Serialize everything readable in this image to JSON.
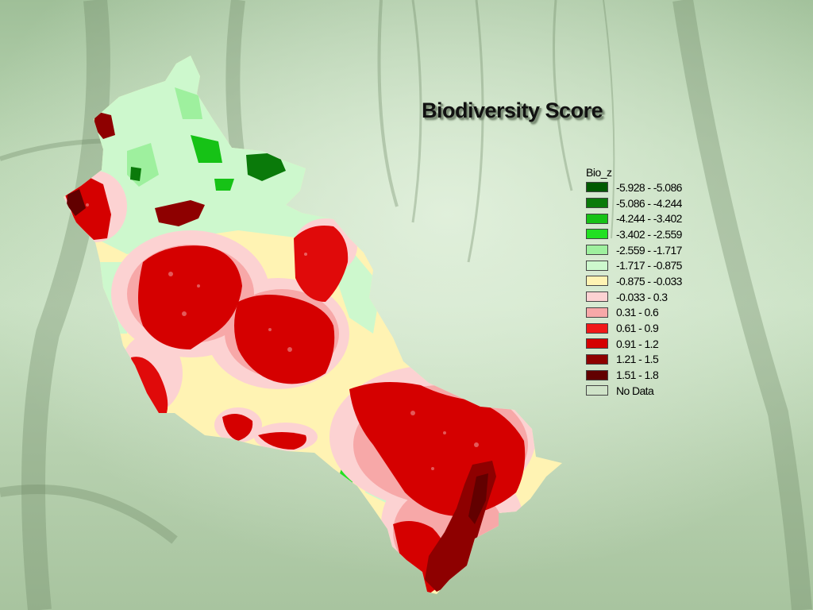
{
  "map": {
    "title": "Biodiversity Score",
    "legend": {
      "title": "Bio_z",
      "items": [
        {
          "label": "-5.928 - -5.086",
          "color": "#005a00"
        },
        {
          "label": "-5.086 - -4.244",
          "color": "#0a7a0a"
        },
        {
          "label": "-4.244 - -3.402",
          "color": "#16c216"
        },
        {
          "label": "-3.402 - -2.559",
          "color": "#22e022"
        },
        {
          "label": "-2.559 - -1.717",
          "color": "#9ef09e"
        },
        {
          "label": "-1.717 - -0.875",
          "color": "#cdf8cd"
        },
        {
          "label": "-0.875 - -0.033",
          "color": "#fff3b3"
        },
        {
          "label": "-0.033 - 0.3",
          "color": "#fcd2d2"
        },
        {
          "label": "0.31 - 0.6",
          "color": "#f7a8a8"
        },
        {
          "label": "0.61 - 0.9",
          "color": "#f01818"
        },
        {
          "label": "0.91 - 1.2",
          "color": "#d50000"
        },
        {
          "label": "1.21 - 1.5",
          "color": "#8e0000"
        },
        {
          "label": "1.51 - 1.8",
          "color": "#620000"
        },
        {
          "label": "No Data",
          "color": "#cfe3c8"
        }
      ]
    }
  }
}
